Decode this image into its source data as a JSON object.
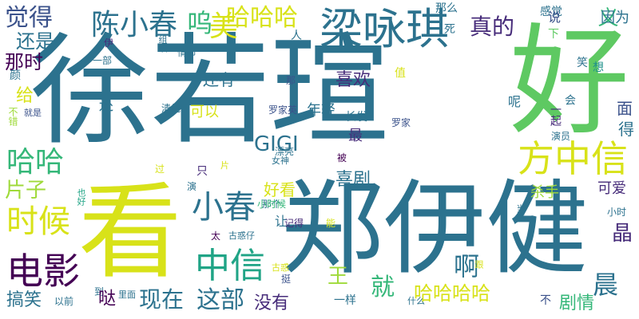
{
  "palette": {
    "yellow": "#d8e219",
    "lime": "#9fda3a",
    "green": "#5ec962",
    "teal_green": "#35b779",
    "teal": "#20a486",
    "teal_blue": "#21918c",
    "blue": "#2c728e",
    "slate": "#3b528b",
    "indigo": "#472c7a",
    "purple": "#440154"
  },
  "words": [
    {
      "text": "徐若瑄",
      "color": "#2c728e"
    },
    {
      "text": "好",
      "color": "#5ec962"
    },
    {
      "text": "看",
      "color": "#d8e219"
    },
    {
      "text": "郑伊健",
      "color": "#2c728e"
    },
    {
      "text": "梁咏琪",
      "color": "#2c728e"
    },
    {
      "text": "电影",
      "color": "#440154"
    },
    {
      "text": "中信",
      "color": "#20a486"
    },
    {
      "text": "方中信",
      "color": "#d8e219"
    },
    {
      "text": "小春",
      "color": "#2c728e"
    },
    {
      "text": "陈小春",
      "color": "#2c728e"
    },
    {
      "text": "哈哈哈",
      "color": "#d8e219"
    },
    {
      "text": "时候",
      "color": "#d8e219"
    },
    {
      "text": "觉得",
      "color": "#3b528b"
    },
    {
      "text": "还是",
      "color": "#2c728e"
    },
    {
      "text": "那时",
      "color": "#440154"
    },
    {
      "text": "美",
      "color": "#d8e219"
    },
    {
      "text": "哈哈",
      "color": "#35b779"
    },
    {
      "text": "片子",
      "color": "#9fda3a"
    },
    {
      "text": "喜欢",
      "color": "#472c7a"
    },
    {
      "text": "还有",
      "color": "#2c728e"
    },
    {
      "text": "可以",
      "color": "#d8e219"
    },
    {
      "text": "年轻",
      "color": "#2c728e"
    },
    {
      "text": "真的",
      "color": "#472c7a"
    },
    {
      "text": "GIGI",
      "color": "#2c728e"
    },
    {
      "text": "喜剧",
      "color": "#2c728e"
    },
    {
      "text": "好看",
      "color": "#d8e219"
    },
    {
      "text": "这部",
      "color": "#2c728e"
    },
    {
      "text": "现在",
      "color": "#2c728e"
    },
    {
      "text": "就",
      "color": "#35b779"
    },
    {
      "text": "啊",
      "color": "#2c728e"
    },
    {
      "text": "哈哈哈哈",
      "color": "#d8e219"
    },
    {
      "text": "没有",
      "color": "#472c7a"
    },
    {
      "text": "搞笑",
      "color": "#2c728e"
    },
    {
      "text": "剧情",
      "color": "#35b779"
    },
    {
      "text": "晨",
      "color": "#2c728e"
    },
    {
      "text": "晶",
      "color": "#472c7a"
    },
    {
      "text": "面",
      "color": "#3b528b"
    },
    {
      "text": "得",
      "color": "#2c728e"
    },
    {
      "text": "可爱",
      "color": "#472c7a"
    },
    {
      "text": "杀手",
      "color": "#9fda3a"
    },
    {
      "text": "义",
      "color": "#35b779"
    },
    {
      "text": "因为",
      "color": "#2c728e"
    },
    {
      "text": "那么",
      "color": "#2c728e"
    },
    {
      "text": "感觉",
      "color": "#2c728e"
    },
    {
      "text": "人",
      "color": "#2c728e"
    },
    {
      "text": "死",
      "color": "#2c728e"
    },
    {
      "text": "说",
      "color": "#3b528b"
    },
    {
      "text": "下",
      "color": "#5ec962"
    },
    {
      "text": "想",
      "color": "#21918c"
    },
    {
      "text": "笑",
      "color": "#2c728e"
    },
    {
      "text": "值",
      "color": "#d8e219"
    },
    {
      "text": "那",
      "color": "#3b528b"
    },
    {
      "text": "一部",
      "color": "#2c728e"
    },
    {
      "text": "伊",
      "color": "#472c7a"
    },
    {
      "text": "组织",
      "color": "#2c728e"
    },
    {
      "text": "情节",
      "color": "#2c728e"
    },
    {
      "text": "颜",
      "color": "#2c728e"
    },
    {
      "text": "给",
      "color": "#d8e219"
    },
    {
      "text": "就是",
      "color": "#3b528b"
    },
    {
      "text": "不错",
      "color": "#9fda3a"
    },
    {
      "text": "还",
      "color": "#2c728e"
    },
    {
      "text": "清纯",
      "color": "#2c728e"
    },
    {
      "text": "罗家英",
      "color": "#3b528b"
    },
    {
      "text": "长发",
      "color": "#2c728e"
    },
    {
      "text": "罗家",
      "color": "#3b528b"
    },
    {
      "text": "一起",
      "color": "#472c7a"
    },
    {
      "text": "会",
      "color": "#2c728e"
    },
    {
      "text": "演员",
      "color": "#2c728e"
    },
    {
      "text": "呢",
      "color": "#2c728e"
    },
    {
      "text": "最",
      "color": "#472c7a"
    },
    {
      "text": "被",
      "color": "#440154"
    },
    {
      "text": "漂亮",
      "color": "#2c728e"
    },
    {
      "text": "女神",
      "color": "#2c728e"
    },
    {
      "text": "过",
      "color": "#d8e219"
    },
    {
      "text": "只",
      "color": "#472c7a"
    },
    {
      "text": "片",
      "color": "#d8e219"
    },
    {
      "text": "演",
      "color": "#2c728e"
    },
    {
      "text": "那个",
      "color": "#2c728e"
    },
    {
      "text": "让",
      "color": "#2c728e"
    },
    {
      "text": "记得",
      "color": "#472c7a"
    },
    {
      "text": "能",
      "color": "#d8e219"
    },
    {
      "text": "当年",
      "color": "#2c728e"
    },
    {
      "text": "小时",
      "color": "#2c728e"
    },
    {
      "text": "小时候",
      "color": "#35b779"
    },
    {
      "text": "太",
      "color": "#440154"
    },
    {
      "text": "古惑仔",
      "color": "#2c728e"
    },
    {
      "text": "古惑",
      "color": "#d8e219"
    },
    {
      "text": "挺",
      "color": "#3b528b"
    },
    {
      "text": "跟",
      "color": "#d8e219"
    },
    {
      "text": "王",
      "color": "#9fda3a"
    },
    {
      "text": "到",
      "color": "#2c728e"
    },
    {
      "text": "以前",
      "color": "#2c728e"
    },
    {
      "text": "里面",
      "color": "#2c728e"
    },
    {
      "text": "什么",
      "color": "#2c728e"
    },
    {
      "text": "一样",
      "color": "#2c728e"
    },
    {
      "text": "不",
      "color": "#3b528b"
    },
    {
      "text": "哒",
      "color": "#440154"
    },
    {
      "text": "也好",
      "color": "#20a486"
    },
    {
      "text": "呜",
      "color": "#35b779"
    }
  ]
}
